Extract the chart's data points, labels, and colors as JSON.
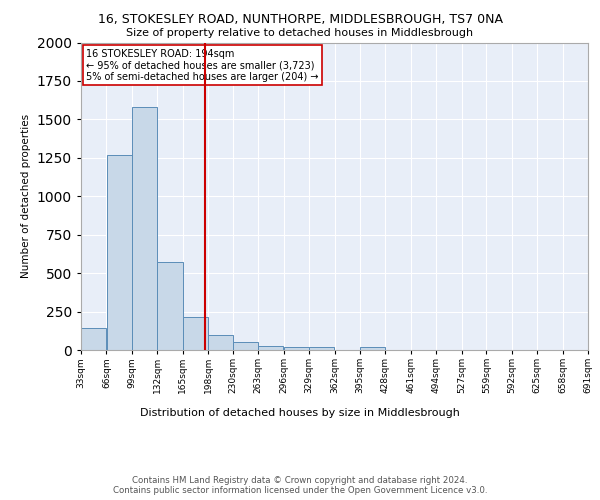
{
  "title1": "16, STOKESLEY ROAD, NUNTHORPE, MIDDLESBROUGH, TS7 0NA",
  "title2": "Size of property relative to detached houses in Middlesbrough",
  "xlabel": "Distribution of detached houses by size in Middlesbrough",
  "ylabel": "Number of detached properties",
  "bin_edges": [
    33,
    66,
    99,
    132,
    165,
    198,
    230,
    263,
    296,
    329,
    362,
    395,
    428,
    461,
    494,
    527,
    559,
    592,
    625,
    658,
    691
  ],
  "bin_counts": [
    140,
    1270,
    1580,
    570,
    215,
    100,
    50,
    25,
    20,
    20,
    0,
    20,
    0,
    0,
    0,
    0,
    0,
    0,
    0,
    0
  ],
  "bar_color": "#c8d8e8",
  "bar_edge_color": "#5b8db8",
  "background_color": "#e8eef8",
  "grid_color": "#ffffff",
  "vline_x": 194,
  "vline_color": "#cc0000",
  "annotation_text": "16 STOKESLEY ROAD: 194sqm\n← 95% of detached houses are smaller (3,723)\n5% of semi-detached houses are larger (204) →",
  "annotation_box_color": "#ffffff",
  "annotation_box_edge": "#cc0000",
  "footer_text": "Contains HM Land Registry data © Crown copyright and database right 2024.\nContains public sector information licensed under the Open Government Licence v3.0.",
  "ylim": [
    0,
    2000
  ],
  "tick_labels": [
    "33sqm",
    "66sqm",
    "99sqm",
    "132sqm",
    "165sqm",
    "198sqm",
    "230sqm",
    "263sqm",
    "296sqm",
    "329sqm",
    "362sqm",
    "395sqm",
    "428sqm",
    "461sqm",
    "494sqm",
    "527sqm",
    "559sqm",
    "592sqm",
    "625sqm",
    "658sqm",
    "691sqm"
  ]
}
